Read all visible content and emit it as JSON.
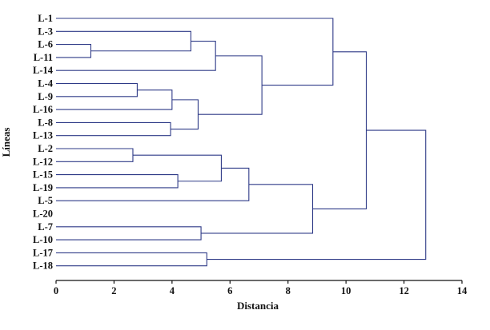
{
  "chart_data": {
    "type": "dendrogram",
    "title": "",
    "xlabel": "Distancia",
    "ylabel": "Líneas",
    "xlim": [
      0,
      14
    ],
    "x_ticks": [
      0,
      2,
      4,
      6,
      8,
      10,
      12,
      14
    ],
    "leaves": [
      "L-1",
      "L-3",
      "L-6",
      "L-11",
      "L-14",
      "L-4",
      "L-9",
      "L-16",
      "L-8",
      "L-13",
      "L-2",
      "L-12",
      "L-15",
      "L-19",
      "L-5",
      "L-20",
      "L-7",
      "L-10",
      "L-17",
      "L-18"
    ],
    "merges": [
      {
        "id": "c1",
        "left": "L-6",
        "right": "L-11",
        "distance": 1.2
      },
      {
        "id": "c2",
        "left": "L-3",
        "right": "c1",
        "distance": 4.65
      },
      {
        "id": "c3",
        "left": "c2",
        "right": "L-14",
        "distance": 5.5
      },
      {
        "id": "c4",
        "left": "L-4",
        "right": "L-9",
        "distance": 2.8
      },
      {
        "id": "c5",
        "left": "c4",
        "right": "L-16",
        "distance": 4.0
      },
      {
        "id": "c6",
        "left": "L-8",
        "right": "L-13",
        "distance": 3.95
      },
      {
        "id": "c7",
        "left": "c5",
        "right": "c6",
        "distance": 4.9
      },
      {
        "id": "c8",
        "left": "c3",
        "right": "c7",
        "distance": 7.1
      },
      {
        "id": "c9",
        "left": "L-1",
        "right": "c8",
        "distance": 9.55
      },
      {
        "id": "c10",
        "left": "L-2",
        "right": "L-12",
        "distance": 2.65
      },
      {
        "id": "c11",
        "left": "L-15",
        "right": "L-19",
        "distance": 4.2
      },
      {
        "id": "c12",
        "left": "c10",
        "right": "c11",
        "distance": 5.7
      },
      {
        "id": "c13",
        "left": "c12",
        "right": "L-5",
        "distance": 6.65
      },
      {
        "id": "c14",
        "left": "L-7",
        "right": "L-10",
        "distance": 5.0
      },
      {
        "id": "c15",
        "left": "c13",
        "right": "c14",
        "distance": 8.85
      },
      {
        "id": "c16",
        "left": "c9",
        "right": "c15",
        "distance": 10.7
      },
      {
        "id": "c17",
        "left": "L-17",
        "right": "L-18",
        "distance": 5.2
      },
      {
        "id": "c18",
        "left": "c16",
        "right": "c17",
        "distance": 12.75
      }
    ],
    "colors": {
      "branches": "#2e3a87",
      "axis": "#111111",
      "text": "#111111"
    }
  }
}
